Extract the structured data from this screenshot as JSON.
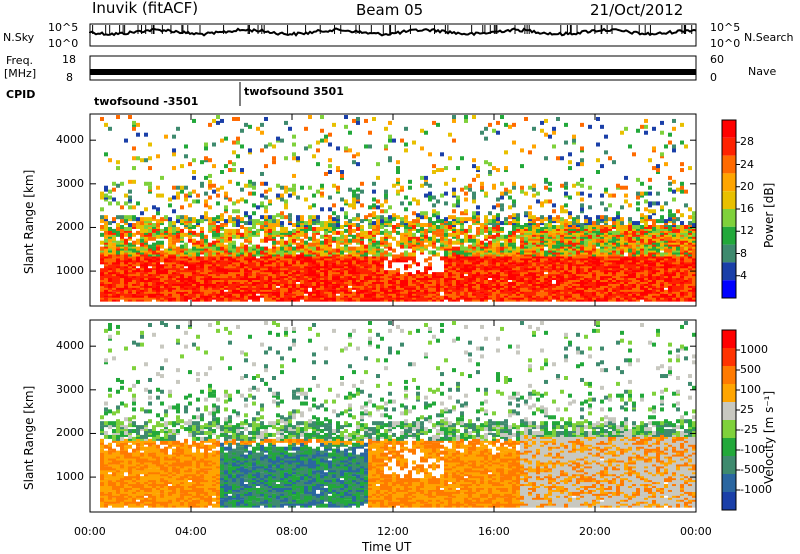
{
  "header": {
    "station": "Inuvik (fitACF)",
    "beam": "Beam 05",
    "date": "21/Oct/2012"
  },
  "side_labels": {
    "nsky": "N.Sky",
    "freq_line1": "Freq.",
    "freq_line2": "[MHz]",
    "cpid": "CPID",
    "nsearch": "N.Search",
    "nave": "Nave"
  },
  "cpid_labels": [
    "twofsound -3501",
    "twofsound 3501"
  ],
  "colors": {
    "power": [
      "#0000ff",
      "#1a3fa8",
      "#3e8a6e",
      "#22a83a",
      "#7fd13b",
      "#e8c000",
      "#ffa500",
      "#ff6a00",
      "#ff2200",
      "#ff0000"
    ],
    "velocity": [
      "#1a3fa8",
      "#2a66a0",
      "#3e8a6e",
      "#22a83a",
      "#7fd13b",
      "#c8c8c0",
      "#ffa500",
      "#ff7a00",
      "#ff3300",
      "#ff0000"
    ]
  },
  "chart_data": [
    {
      "type": "line",
      "panel": "noise",
      "left_axis": {
        "label": "N.Sky",
        "ticks": [
          "10^5",
          "10^0"
        ]
      },
      "right_axis": {
        "label": "N.Search",
        "ticks": [
          "10^5",
          "10^0"
        ]
      }
    },
    {
      "type": "line",
      "panel": "frequency",
      "left_axis": {
        "label": "Freq. [MHz]",
        "ticks": [
          18,
          8
        ],
        "range": [
          8,
          18
        ]
      },
      "right_axis": {
        "label": "Nave",
        "ticks": [
          60,
          0
        ],
        "range": [
          0,
          60
        ]
      }
    },
    {
      "type": "heatmap",
      "panel": "power",
      "xlabel": "",
      "ylabel": "Slant Range [km]",
      "yticks": [
        1000,
        2000,
        3000,
        4000
      ],
      "ylim": [
        200,
        4600
      ],
      "xlim": [
        0,
        24
      ],
      "colorbar": {
        "label": "Power [dB]",
        "ticks": [
          4,
          8,
          12,
          16,
          20,
          24,
          28
        ]
      }
    },
    {
      "type": "heatmap",
      "panel": "velocity",
      "xlabel": "Time UT",
      "ylabel": "Slant Range [km]",
      "yticks": [
        1000,
        2000,
        3000,
        4000
      ],
      "ylim": [
        200,
        4600
      ],
      "xlim": [
        0,
        24
      ],
      "xticks": [
        "00:00",
        "04:00",
        "08:00",
        "12:00",
        "16:00",
        "20:00",
        "00:00"
      ],
      "colorbar": {
        "label": "Velocity [m s⁻¹]",
        "ticks": [
          1000,
          500,
          100,
          25,
          -25,
          -100,
          -500,
          -1000
        ]
      }
    }
  ]
}
